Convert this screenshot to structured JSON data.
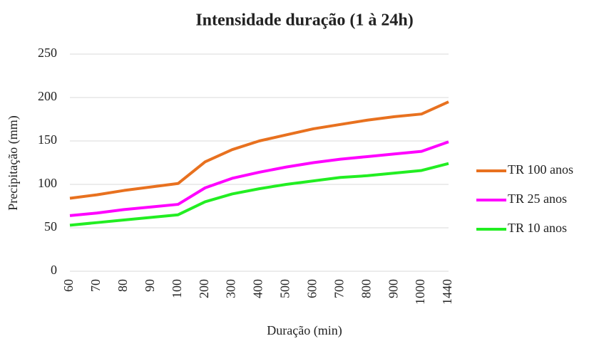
{
  "chart_data": {
    "type": "line",
    "title": "Intensidade duração (1 à 24h)",
    "x_label": "Duração (min)",
    "y_label": "Precipitação (mm)",
    "categories": [
      "60",
      "70",
      "80",
      "90",
      "100",
      "200",
      "300",
      "400",
      "500",
      "600",
      "700",
      "800",
      "900",
      "1000",
      "1440"
    ],
    "series": [
      {
        "name": "TR 100 anos",
        "color": "#e8711f",
        "values": [
          84,
          88,
          93,
          97,
          101,
          126,
          140,
          150,
          157,
          164,
          169,
          174,
          178,
          181,
          195
        ]
      },
      {
        "name": "TR 25 anos",
        "color": "#ff00ff",
        "values": [
          64,
          67,
          71,
          74,
          77,
          96,
          107,
          114,
          120,
          125,
          129,
          132,
          135,
          138,
          149
        ]
      },
      {
        "name": "TR 10 anos",
        "color": "#22ee22",
        "values": [
          53,
          56,
          59,
          62,
          65,
          80,
          89,
          95,
          100,
          104,
          108,
          110,
          113,
          116,
          124
        ]
      }
    ],
    "ylim": [
      0,
      250
    ],
    "yticks": [
      0,
      50,
      100,
      150,
      200,
      250
    ],
    "grid": true,
    "legend": "right"
  }
}
